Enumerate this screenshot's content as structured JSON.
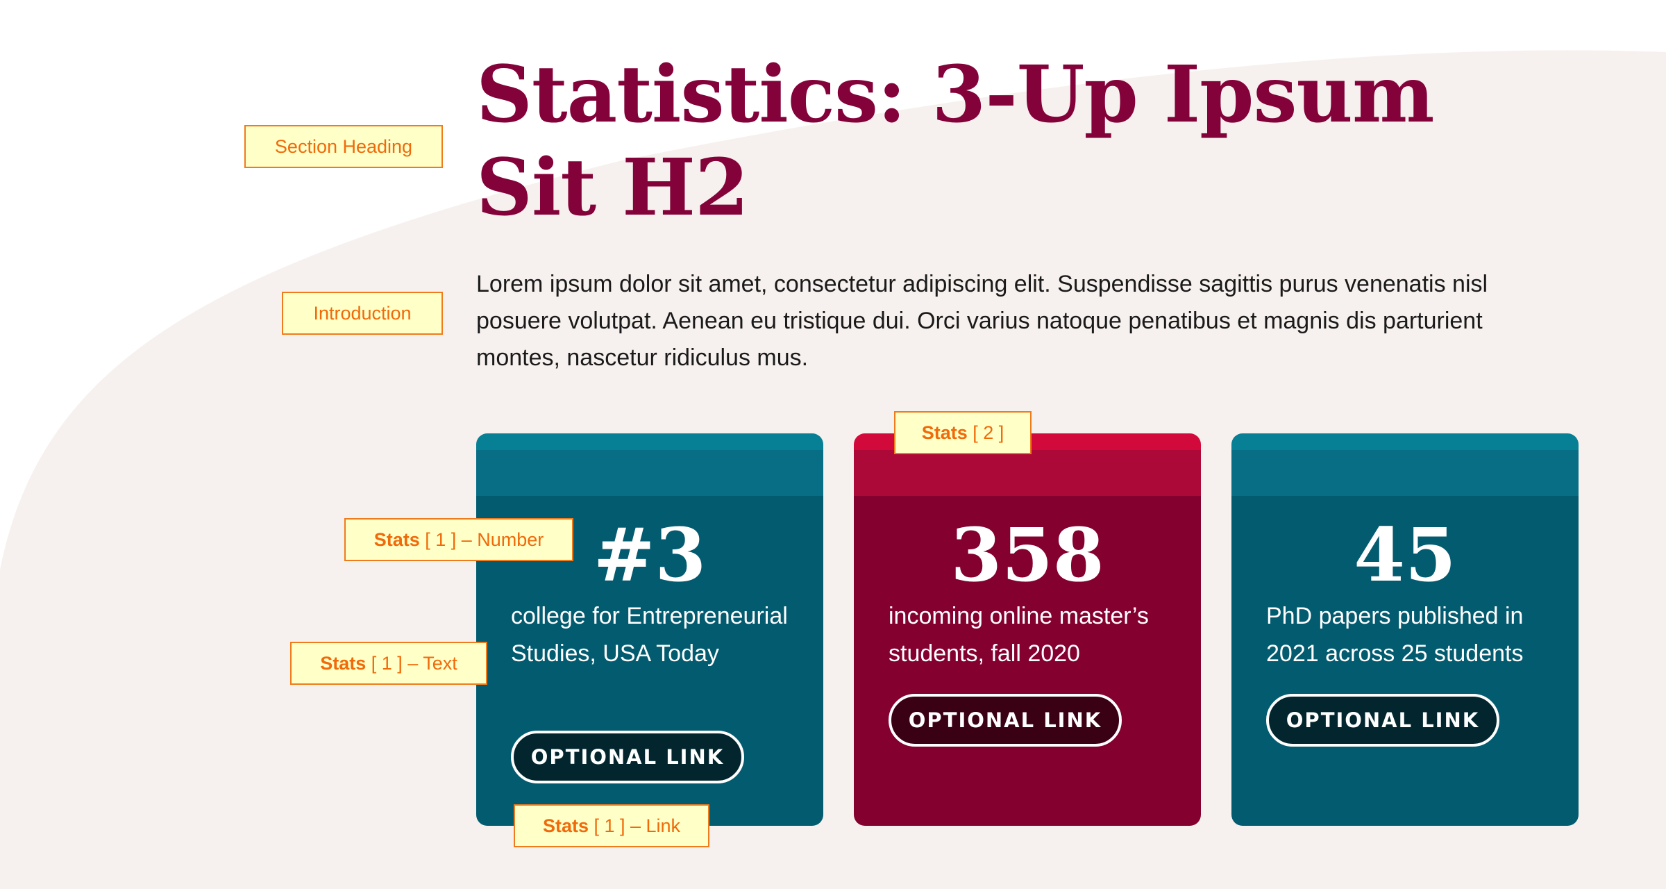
{
  "colors": {
    "heading": "#84023a",
    "teal_card": "#035b70",
    "red_card": "#83002f",
    "background_curve": "#f6f1ee",
    "annotation_border": "#f07b1c"
  },
  "section": {
    "heading": "Statistics: 3-Up Ipsum Sit H2",
    "intro": "Lorem ipsum dolor sit amet, consectetur adipiscing elit. Suspendisse sagittis purus venenatis nisl posuere volutpat. Aenean eu tristique dui. Orci varius natoque penatibus et magnis dis parturient montes, nascetur ridiculus mus."
  },
  "stats": [
    {
      "number": "#3",
      "text": "college for Entrepreneurial Studies, USA Today",
      "link": "OPTIONAL LINK",
      "theme": "teal"
    },
    {
      "number": "358",
      "text": "incoming online master’s students, fall 2020",
      "link": "OPTIONAL LINK",
      "theme": "red"
    },
    {
      "number": "45",
      "text": "PhD papers published in 2021 across 25 students",
      "link": "OPTIONAL LINK",
      "theme": "teal"
    }
  ],
  "annotations": {
    "section_heading": "Section Heading",
    "introduction": "Introduction",
    "stats_2": {
      "bold": "Stats",
      "rest": " [ 2 ]"
    },
    "stats_1_number": {
      "bold": "Stats",
      "rest": " [ 1 ] – Number"
    },
    "stats_1_text": {
      "bold": "Stats",
      "rest": " [ 1 ] – Text"
    },
    "stats_1_link": {
      "bold": "Stats",
      "rest": " [ 1 ] – Link"
    }
  }
}
